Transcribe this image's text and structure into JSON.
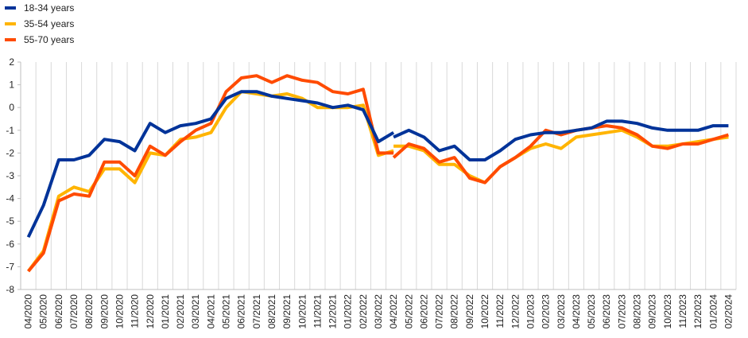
{
  "chart_data": {
    "type": "line",
    "title": "",
    "xlabel": "",
    "ylabel": "",
    "ylim": [
      -8,
      2
    ],
    "yticks": [
      -8,
      -7,
      -6,
      -5,
      -4,
      -3,
      -2,
      -1,
      0,
      1,
      2
    ],
    "grid": "vertical",
    "legend_position": "top-left",
    "x": [
      "04/2020",
      "05/2020",
      "06/2020",
      "07/2020",
      "08/2020",
      "09/2020",
      "10/2020",
      "11/2020",
      "12/2020",
      "01/2021",
      "02/2021",
      "03/2021",
      "04/2021",
      "05/2021",
      "06/2021",
      "07/2021",
      "08/2021",
      "09/2021",
      "10/2021",
      "11/2021",
      "12/2021",
      "01/2022",
      "02/2022",
      "03/2022",
      "04/2022",
      "05/2022",
      "06/2022",
      "07/2022",
      "08/2022",
      "09/2022",
      "10/2022",
      "11/2022",
      "12/2022",
      "01/2023",
      "02/2023",
      "03/2023",
      "04/2023",
      "05/2023",
      "06/2023",
      "07/2023",
      "08/2023",
      "09/2023",
      "10/2023",
      "11/2023",
      "12/2023",
      "01/2024",
      "02/2024"
    ],
    "x_labels": [
      "04/2020",
      "05/2020",
      "06/2020",
      "07/2020",
      "08/2020",
      "09/2020",
      "10/2020",
      "11/2020",
      "12/2020",
      "01/2021",
      "02/2021",
      "03/2021",
      "04/2021",
      "05/2021",
      "06/2021",
      "07/2021",
      "08/2021",
      "09/2021",
      "10/2021",
      "11/2021",
      "12/2021",
      "01/2022",
      "02/2022",
      "03/2022",
      "04/2022",
      "05/2022",
      "06/2022",
      "07/2022",
      "08/2022",
      "09/2022",
      "10/2022",
      "11/2022",
      "12/2022",
      "01/2023",
      "02/2023",
      "03/2023",
      "04/2023",
      "05/2023",
      "06/2023",
      "07/2023",
      "08/2023",
      "09/2023",
      "10/2023",
      "11/2023",
      "12/2023",
      "01/2024",
      "02/2024"
    ],
    "series": [
      {
        "name": "18-34 years",
        "color": "#003399",
        "segments": [
          {
            "start_index": 0,
            "values": [
              -5.7,
              -4.3,
              -2.3,
              -2.3,
              -2.1,
              -1.4,
              -1.5,
              -1.9,
              -0.7,
              -1.1,
              -0.8,
              -0.7,
              -0.5,
              0.4,
              0.7,
              0.7,
              0.5,
              0.4,
              0.3,
              0.2,
              0.0,
              0.1,
              -0.1,
              -1.5,
              -1.1
            ]
          },
          {
            "start_index": 24,
            "values": [
              -1.3,
              -1.0,
              -1.3,
              -1.9,
              -1.7,
              -2.3,
              -2.3,
              -1.9,
              -1.4,
              -1.2,
              -1.1,
              -1.1,
              -1.0,
              -0.9,
              -0.6,
              -0.6,
              -0.7,
              -0.9,
              -1.0,
              -1.0,
              -1.0,
              -0.8,
              -0.8
            ]
          }
        ]
      },
      {
        "name": "35-54 years",
        "color": "#FFB400",
        "segments": [
          {
            "start_index": 0,
            "values": [
              -7.2,
              -6.3,
              -3.9,
              -3.5,
              -3.7,
              -2.7,
              -2.7,
              -3.3,
              -2.0,
              -2.1,
              -1.4,
              -1.3,
              -1.1,
              0.0,
              0.7,
              0.6,
              0.5,
              0.6,
              0.4,
              0.0,
              0.0,
              0.0,
              0.1,
              -2.1,
              -1.9
            ]
          },
          {
            "start_index": 24,
            "values": [
              -1.7,
              -1.7,
              -1.9,
              -2.5,
              -2.5,
              -3.0,
              -3.3,
              -2.6,
              -2.2,
              -1.8,
              -1.6,
              -1.8,
              -1.3,
              -1.2,
              -1.1,
              -1.0,
              -1.3,
              -1.7,
              -1.7,
              -1.6,
              -1.5,
              -1.4,
              -1.3
            ]
          }
        ]
      },
      {
        "name": "55-70 years",
        "color": "#FF4B00",
        "segments": [
          {
            "start_index": 0,
            "values": [
              -7.2,
              -6.4,
              -4.1,
              -3.8,
              -3.9,
              -2.4,
              -2.4,
              -3.0,
              -1.7,
              -2.1,
              -1.5,
              -1.0,
              -0.7,
              0.7,
              1.3,
              1.4,
              1.1,
              1.4,
              1.2,
              1.1,
              0.7,
              0.6,
              0.8,
              -2.0,
              -2.0
            ]
          },
          {
            "start_index": 24,
            "values": [
              -2.2,
              -1.6,
              -1.8,
              -2.4,
              -2.2,
              -3.1,
              -3.3,
              -2.6,
              -2.2,
              -1.7,
              -1.0,
              -1.2,
              -1.0,
              -0.9,
              -0.8,
              -0.9,
              -1.2,
              -1.7,
              -1.8,
              -1.6,
              -1.6,
              -1.4,
              -1.2
            ]
          }
        ]
      }
    ]
  }
}
